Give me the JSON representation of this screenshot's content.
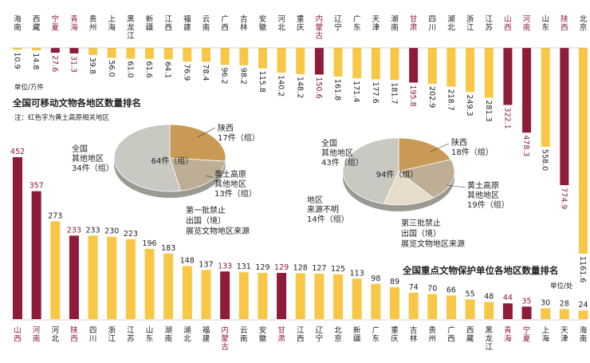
{
  "colors": {
    "yellow": "#F7C745",
    "red": "#8E1B3A",
    "pie_main": "#C9C9C2",
    "pie_shaanxi": "#C99A55",
    "pie_loess": "#BDAE95",
    "pie_unknown": "#E5DDC9",
    "text": "#222222",
    "red_text": "#8E1B3A"
  },
  "chart_data": [
    {
      "type": "bar",
      "title": "全国可移动文物各地区数量排名",
      "note": "注：红色字为黄土高原相关地区",
      "unit_label": "单位/万件",
      "categories": [
        "海南",
        "西藏",
        "宁夏",
        "青海",
        "贵州",
        "上海",
        "黑龙江",
        "新疆",
        "江西",
        "福建",
        "云南",
        "广西",
        "吉林",
        "安徽",
        "河北",
        "重庆",
        "内蒙古",
        "辽宁",
        "广东",
        "天津",
        "湖南",
        "甘肃",
        "四川",
        "湖北",
        "浙江",
        "江苏",
        "山西",
        "河南",
        "山东",
        "陕西",
        "北京"
      ],
      "values": [
        10.9,
        14.8,
        27.6,
        31.3,
        39.8,
        56.0,
        61.0,
        61.6,
        64.1,
        76.9,
        78.4,
        96.2,
        98.2,
        115.8,
        140.2,
        148.2,
        150.6,
        161.8,
        171.4,
        177.6,
        181.7,
        195.8,
        202.9,
        218.7,
        249.3,
        281.3,
        322.1,
        478.3,
        558.0,
        774.9,
        1161.6
      ],
      "value_labels": [
        "10.9",
        "14.8",
        "27.6",
        "31.3",
        "39.8",
        "56.0",
        "61.0",
        "61.6",
        "64.1",
        "76.9",
        "78.4",
        "96.2",
        "98.2",
        "115.8",
        "140.2",
        "148.2",
        "150.6",
        "161.8",
        "171.4",
        "177.6",
        "181.7",
        "195.8",
        "202.9",
        "218.7",
        "249.3",
        "281.3",
        "322.1",
        "478.3",
        "558.0",
        "774.9",
        "1161.6"
      ],
      "highlighted": [
        "宁夏",
        "青海",
        "内蒙古",
        "甘肃",
        "山西",
        "河南",
        "陕西"
      ]
    },
    {
      "type": "bar",
      "title": "全国重点文物保护单位各地区数量排名",
      "unit_label": "单位/处",
      "categories": [
        "山西",
        "河南",
        "河北",
        "陕西",
        "四川",
        "浙江",
        "江苏",
        "山东",
        "湖南",
        "湖北",
        "福建",
        "内蒙古",
        "云南",
        "安徽",
        "甘肃",
        "江西",
        "辽宁",
        "北京",
        "新疆",
        "广东",
        "重庆",
        "吉林",
        "贵州",
        "广西",
        "西藏",
        "黑龙江",
        "青海",
        "宁夏",
        "上海",
        "天津",
        "海南"
      ],
      "values": [
        452,
        357,
        273,
        233,
        233,
        230,
        223,
        196,
        183,
        148,
        137,
        133,
        131,
        129,
        129,
        128,
        127,
        125,
        113,
        98,
        89,
        74,
        70,
        66,
        55,
        48,
        44,
        35,
        30,
        28,
        24
      ],
      "highlighted": [
        "山西",
        "河南",
        "陕西",
        "内蒙古",
        "甘肃",
        "青海",
        "宁夏"
      ]
    },
    {
      "type": "pie",
      "center_label": "64件（组）",
      "caption": [
        "第一批禁止",
        "出国（境）",
        "展览文物地区来源"
      ],
      "slices": [
        {
          "lines": [
            "陕西",
            "17件（组）"
          ],
          "value": 17
        },
        {
          "lines": [
            "黄土高原",
            "其他地区",
            "13件（组）"
          ],
          "value": 13
        },
        {
          "lines": [
            "全国",
            "其他地区",
            "34件（组）"
          ],
          "value": 34
        }
      ]
    },
    {
      "type": "pie",
      "center_label": "94件（组）",
      "caption": [
        "第三批禁止",
        "出国（境）",
        "展览文物地区来源"
      ],
      "slices": [
        {
          "lines": [
            "陕西",
            "18件（组）"
          ],
          "value": 18
        },
        {
          "lines": [
            "黄土高原",
            "其他地区",
            "19件（组）"
          ],
          "value": 19
        },
        {
          "lines": [
            "地区",
            "来源不明",
            "14件（组）"
          ],
          "value": 14
        },
        {
          "lines": [
            "全国",
            "其他地区",
            "43件（组）"
          ],
          "value": 43
        }
      ]
    }
  ]
}
